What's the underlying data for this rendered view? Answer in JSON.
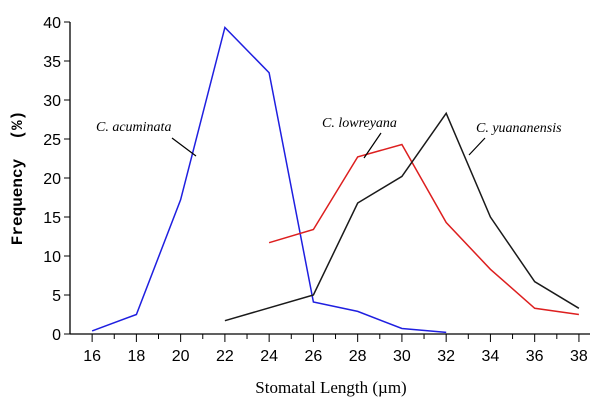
{
  "chart_data": {
    "type": "line",
    "title": "",
    "xlabel": "Stomatal Length (µm)",
    "ylabel": "Frequency  (%)",
    "xlim": [
      15,
      38.5
    ],
    "ylim": [
      0,
      40
    ],
    "x_ticks": [
      16,
      18,
      20,
      22,
      24,
      26,
      28,
      30,
      32,
      34,
      36,
      38
    ],
    "y_ticks": [
      0,
      5,
      10,
      15,
      20,
      25,
      30,
      35,
      40
    ],
    "grid": false,
    "legend": "none",
    "series": [
      {
        "name": "C. acuminata",
        "color": "#1f1fe0",
        "x": [
          16,
          18,
          20,
          22,
          24,
          26,
          28,
          30,
          32
        ],
        "y": [
          0.4,
          2.5,
          17.2,
          39.3,
          33.5,
          4.1,
          2.9,
          0.7,
          0.2
        ]
      },
      {
        "name": "C. lowreyana",
        "color": "#dd1f1f",
        "x": [
          24,
          26,
          28,
          30,
          32,
          34,
          36,
          38
        ],
        "y": [
          11.7,
          13.4,
          22.7,
          24.3,
          14.3,
          8.3,
          3.3,
          2.5
        ]
      },
      {
        "name": "C. yuananensis",
        "color": "#1a1a1a",
        "x": [
          22,
          26,
          28,
          30,
          32,
          34,
          36,
          38
        ],
        "y": [
          1.7,
          5.0,
          16.8,
          20.2,
          28.3,
          15.0,
          6.7,
          3.3
        ]
      }
    ]
  }
}
